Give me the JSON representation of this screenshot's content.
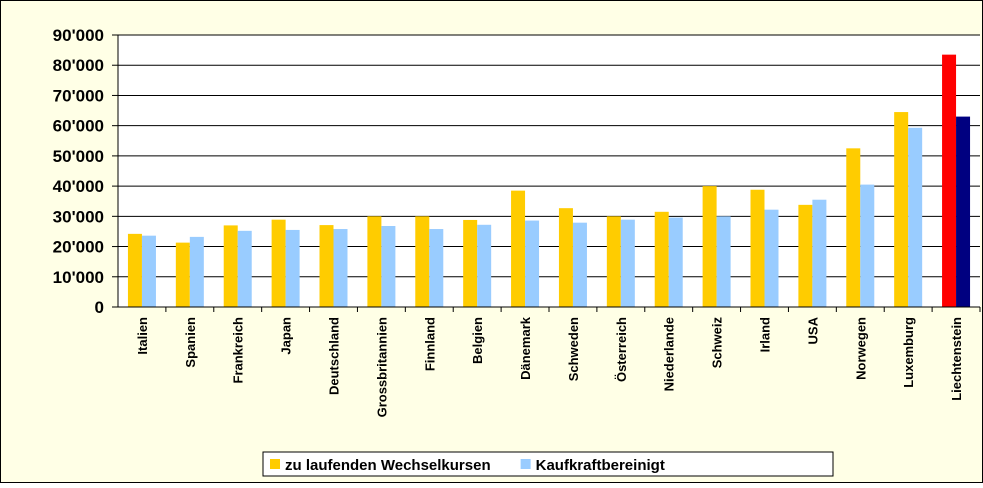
{
  "chart_data": {
    "type": "bar",
    "categories": [
      "Italien",
      "Spanien",
      "Frankreich",
      "Japan",
      "Deutschland",
      "Grossbritannien",
      "Finnland",
      "Belgien",
      "Dänemark",
      "Schweden",
      "Österreich",
      "Niederlande",
      "Schweiz",
      "Irland",
      "USA",
      "Norwegen",
      "Luxemburg",
      "Liechtenstein"
    ],
    "series": [
      {
        "name": "zu laufenden Wechselkursen",
        "color": "#FFCC00",
        "colors": [
          "#FFCC00",
          "#FFCC00",
          "#FFCC00",
          "#FFCC00",
          "#FFCC00",
          "#FFCC00",
          "#FFCC00",
          "#FFCC00",
          "#FFCC00",
          "#FFCC00",
          "#FFCC00",
          "#FFCC00",
          "#FFCC00",
          "#FFCC00",
          "#FFCC00",
          "#FFCC00",
          "#FFCC00",
          "#FF0000"
        ],
        "values": [
          24200,
          21300,
          27000,
          28900,
          27100,
          30000,
          30000,
          28800,
          38500,
          32700,
          30000,
          31500,
          40000,
          38800,
          33800,
          52500,
          64500,
          83500
        ]
      },
      {
        "name": "Kaufkraftbereinigt",
        "color": "#99CCFF",
        "colors": [
          "#99CCFF",
          "#99CCFF",
          "#99CCFF",
          "#99CCFF",
          "#99CCFF",
          "#99CCFF",
          "#99CCFF",
          "#99CCFF",
          "#99CCFF",
          "#99CCFF",
          "#99CCFF",
          "#99CCFF",
          "#99CCFF",
          "#99CCFF",
          "#99CCFF",
          "#99CCFF",
          "#99CCFF",
          "#000080"
        ],
        "values": [
          23600,
          23200,
          25200,
          25500,
          25800,
          26800,
          25800,
          27200,
          28600,
          27900,
          28900,
          29600,
          30000,
          32200,
          35500,
          40500,
          59300,
          63000
        ]
      }
    ],
    "ylim": [
      0,
      90000
    ],
    "yticks": [
      0,
      {
        "value": 10000,
        "label": "10'000"
      },
      {
        "value": 20000,
        "label": "20'000"
      },
      {
        "value": 30000,
        "label": "30'000"
      },
      {
        "value": 40000,
        "label": "40'000"
      },
      {
        "value": 50000,
        "label": "50'000"
      },
      {
        "value": 60000,
        "label": "60'000"
      },
      {
        "value": 70000,
        "label": "70'000"
      },
      {
        "value": 80000,
        "label": "80'000"
      },
      {
        "value": 90000,
        "label": "90'000"
      }
    ],
    "grid": true,
    "legend": "bottom"
  }
}
